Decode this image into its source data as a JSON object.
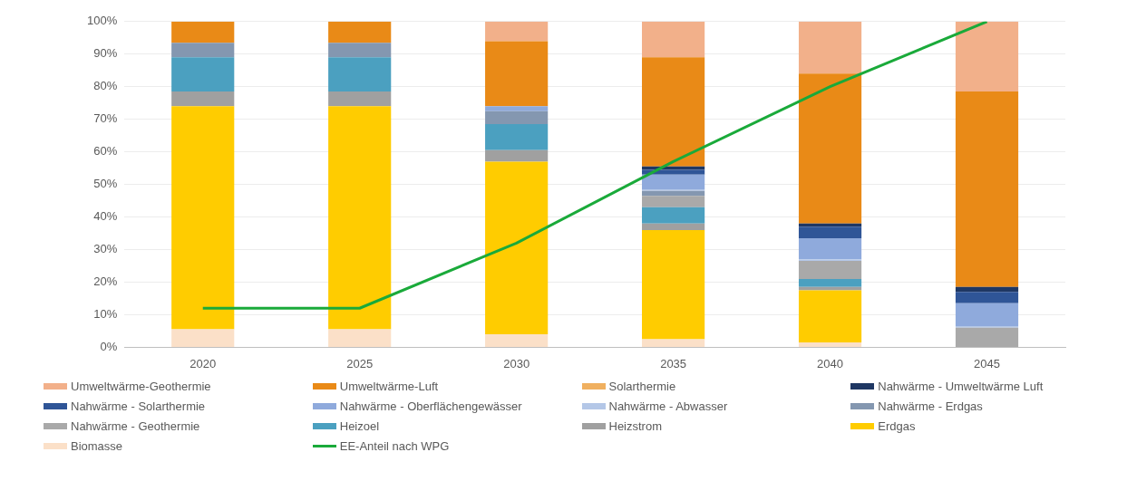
{
  "chart_data": {
    "type": "bar",
    "stacked": true,
    "categories": [
      "2020",
      "2025",
      "2030",
      "2035",
      "2040",
      "2045"
    ],
    "ylim": [
      0,
      100
    ],
    "yticks": [
      {
        "value": 0,
        "label": "0%"
      },
      {
        "value": 10,
        "label": "10%"
      },
      {
        "value": 20,
        "label": "20%"
      },
      {
        "value": 30,
        "label": "30%"
      },
      {
        "value": 40,
        "label": "40%"
      },
      {
        "value": 50,
        "label": "50%"
      },
      {
        "value": 60,
        "label": "60%"
      },
      {
        "value": 70,
        "label": "70%"
      },
      {
        "value": 80,
        "label": "80%"
      },
      {
        "value": 90,
        "label": "90%"
      },
      {
        "value": 100,
        "label": "100%"
      }
    ],
    "grid": "y",
    "legend": "bottom",
    "series": [
      {
        "name": "Biomasse",
        "color": "#fbe0c8",
        "values": [
          5.5,
          5.5,
          4,
          2.5,
          1.5,
          0
        ]
      },
      {
        "name": "Erdgas",
        "color": "#ffcc00",
        "values": [
          68.5,
          68.5,
          53,
          33.5,
          16,
          0
        ]
      },
      {
        "name": "Heizstrom",
        "color": "#a0a0a0",
        "values": [
          4.5,
          4.5,
          3.5,
          2,
          1,
          0
        ]
      },
      {
        "name": "Heizoel",
        "color": "#4ba0c0",
        "values": [
          10.5,
          10.5,
          8,
          5,
          2.5,
          0
        ]
      },
      {
        "name": "Nahwärme - Geothermie",
        "color": "#a9a9a9",
        "values": [
          0,
          0,
          0,
          3.5,
          5.5,
          6
        ]
      },
      {
        "name": "Nahwärme - Erdgas",
        "color": "#8497b0",
        "values": [
          4.5,
          4.5,
          4,
          1.5,
          0,
          0
        ]
      },
      {
        "name": "Nahwärme - Abwasser",
        "color": "#b4c7e7",
        "values": [
          0,
          0,
          0,
          0.5,
          0.5,
          0.5
        ]
      },
      {
        "name": "Nahwärme - Oberflächengewässer",
        "color": "#8faadc",
        "values": [
          0,
          0,
          1.5,
          4.5,
          6.5,
          7
        ]
      },
      {
        "name": "Nahwärme - Solarthermie",
        "color": "#2f5597",
        "values": [
          0,
          0,
          0,
          1.5,
          3.5,
          3.5
        ]
      },
      {
        "name": "Nahwärme - Umweltwärme Luft",
        "color": "#1f3763",
        "values": [
          0,
          0,
          0,
          1,
          1,
          1.5
        ]
      },
      {
        "name": "Solarthermie",
        "color": "#f0b060",
        "values": [
          0,
          0,
          0,
          0,
          0,
          0
        ]
      },
      {
        "name": "Umweltwärme-Luft",
        "color": "#e98a17",
        "values": [
          6.5,
          6.5,
          20,
          33.5,
          46,
          60
        ]
      },
      {
        "name": "Umweltwärme-Geothermie",
        "color": "#f2b08a",
        "values": [
          0,
          0,
          6,
          11,
          16,
          21.5
        ]
      },
      {
        "name": "EE-Anteil nach WPG",
        "type": "line",
        "color": "#1aaa3a",
        "values": [
          12,
          12,
          32,
          57,
          80,
          100
        ]
      }
    ]
  }
}
